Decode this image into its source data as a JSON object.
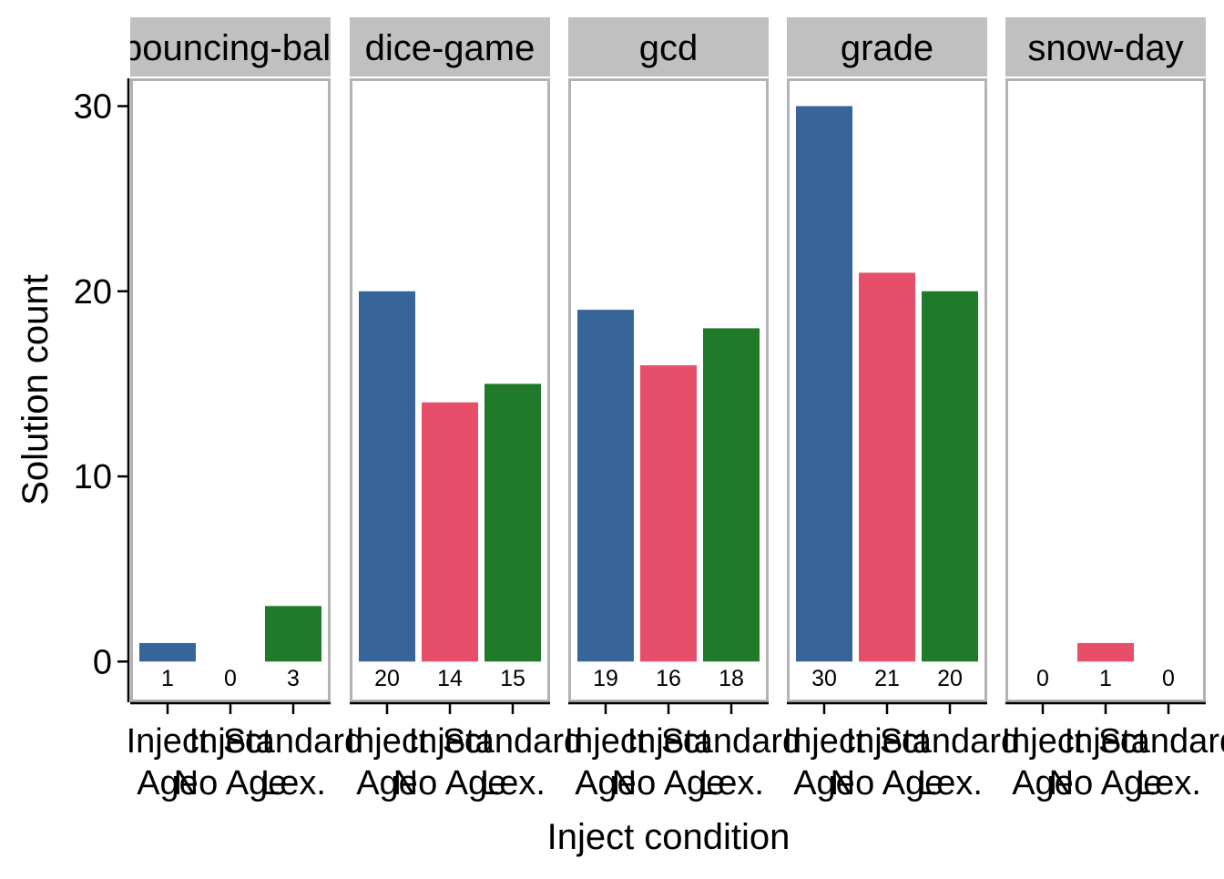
{
  "chart_data": {
    "type": "bar",
    "ylabel": "Solution count",
    "xlabel": "Inject condition",
    "ylim": [
      -2.2,
      31.5
    ],
    "yticks": [
      0,
      10,
      20,
      30
    ],
    "grid": false,
    "legend": "none",
    "categories": [
      {
        "line1": "Inject",
        "line2": "Age"
      },
      {
        "line1": "Inject",
        "line2": "No Age"
      },
      {
        "line1": "Standard",
        "line2": "Lex."
      }
    ],
    "category_colors": [
      "#386599",
      "#e64e69",
      "#1f7a2a"
    ],
    "facets": [
      {
        "title": "bouncing-ball",
        "values": [
          1,
          0,
          3
        ]
      },
      {
        "title": "dice-game",
        "values": [
          20,
          14,
          15
        ]
      },
      {
        "title": "gcd",
        "values": [
          19,
          16,
          18
        ]
      },
      {
        "title": "grade",
        "values": [
          30,
          21,
          20
        ]
      },
      {
        "title": "snow-day",
        "values": [
          0,
          1,
          0
        ]
      }
    ]
  },
  "colors": {
    "strip_background": "#c0c0c0",
    "panel_border": "#b3b3b3",
    "axis_line": "#000000"
  }
}
